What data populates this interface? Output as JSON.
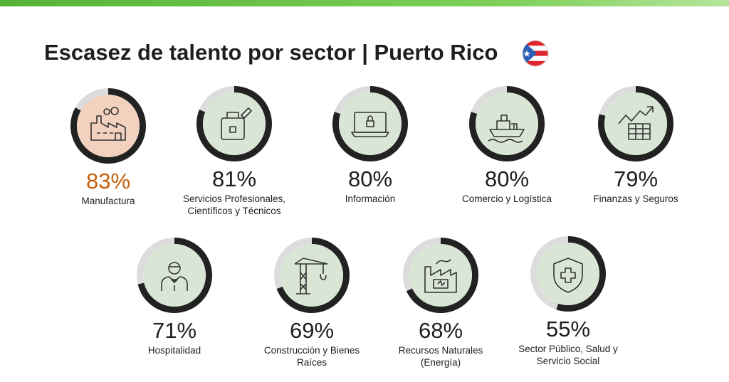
{
  "title": "Escasez de talento por sector | Puerto Rico",
  "flag_icon": "puerto-rico-flag-icon",
  "colors": {
    "ring": "#222222",
    "ring_track": "#dcdcdc",
    "circle_fill": "#d9e6d6",
    "highlight_fill": "#f2d2bf",
    "highlight_text": "#c4600c",
    "icon_stroke": "#333333"
  },
  "sectors": [
    {
      "value": 83,
      "percent": "83%",
      "label_lines": [
        "Manufactura"
      ],
      "icon": "factory-icon",
      "highlight": true
    },
    {
      "value": 81,
      "percent": "81%",
      "label_lines": [
        "Servicios Profesionales,",
        "Científicos y Técnicos"
      ],
      "icon": "briefcase-pen-icon",
      "highlight": false
    },
    {
      "value": 80,
      "percent": "80%",
      "label_lines": [
        "Información"
      ],
      "icon": "laptop-lock-icon",
      "highlight": false
    },
    {
      "value": 80,
      "percent": "80%",
      "label_lines": [
        "Comercio y Logística"
      ],
      "icon": "cargo-ship-icon",
      "highlight": false
    },
    {
      "value": 79,
      "percent": "79%",
      "label_lines": [
        "Finanzas y Seguros"
      ],
      "icon": "finance-chart-icon",
      "highlight": false
    },
    {
      "value": 71,
      "percent": "71%",
      "label_lines": [
        "Hospitalidad"
      ],
      "icon": "waiter-icon",
      "highlight": false
    },
    {
      "value": 69,
      "percent": "69%",
      "label_lines": [
        "Construcción y Bienes",
        "Raíces"
      ],
      "icon": "crane-icon",
      "highlight": false
    },
    {
      "value": 68,
      "percent": "68%",
      "label_lines": [
        "Recursos Naturales",
        "(Energía)"
      ],
      "icon": "power-plant-icon",
      "highlight": false
    },
    {
      "value": 55,
      "percent": "55%",
      "label_lines": [
        "Sector Público, Salud y",
        "Servicio Social"
      ],
      "icon": "shield-cross-icon",
      "highlight": false
    }
  ]
}
